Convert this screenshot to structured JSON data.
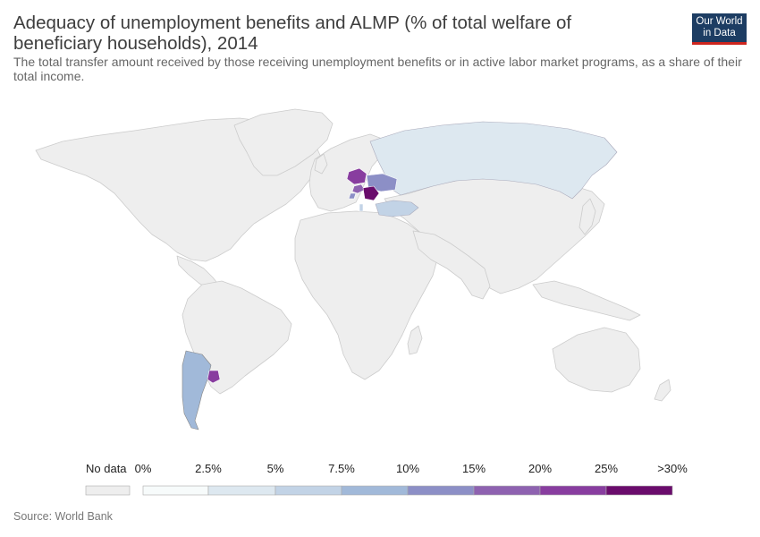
{
  "header": {
    "title": "Adequacy of unemployment benefits and ALMP (% of total welfare of beneficiary households), 2014",
    "subtitle": "The total transfer amount received by those receiving unemployment benefits or in active labor market programs, as a share of their total income."
  },
  "logo": {
    "line1": "Our World",
    "line2": "in Data"
  },
  "legend": {
    "no_data_label": "No data",
    "no_data_color": "#eeeeee",
    "labels": [
      "0%",
      "2.5%",
      "5%",
      "7.5%",
      "10%",
      "15%",
      "20%",
      "25%",
      ">30%"
    ],
    "colors": [
      "#f7fbfb",
      "#dde8f0",
      "#c2d3e6",
      "#a1b9d9",
      "#8c8fc6",
      "#8e62b0",
      "#883d9f",
      "#6a0c6c"
    ]
  },
  "map_data": {
    "regions": [
      {
        "name": "Russia",
        "value_bin": "2.5%-5%",
        "color": "#dde8f0"
      },
      {
        "name": "Turkey",
        "value_bin": "5%-7.5%",
        "color": "#c2d3e6"
      },
      {
        "name": "Argentina",
        "value_bin": "7.5%-10%",
        "color": "#a1b9d9"
      },
      {
        "name": "Uruguay",
        "value_bin": "20%-25%",
        "color": "#883d9f"
      },
      {
        "name": "Poland",
        "value_bin": "20%-25%",
        "color": "#883d9f"
      },
      {
        "name": "Ukraine",
        "value_bin": "10%-15%",
        "color": "#8c8fc6"
      },
      {
        "name": "Romania",
        "value_bin": ">30%",
        "color": "#6a0c6c"
      },
      {
        "name": "Hungary",
        "value_bin": "15%-20%",
        "color": "#8e62b0"
      },
      {
        "name": "Croatia",
        "value_bin": "10%-15%",
        "color": "#8c8fc6"
      },
      {
        "name": "Albania",
        "value_bin": "5%-7.5%",
        "color": "#c2d3e6"
      }
    ]
  },
  "footer": {
    "source": "Source: World Bank"
  }
}
